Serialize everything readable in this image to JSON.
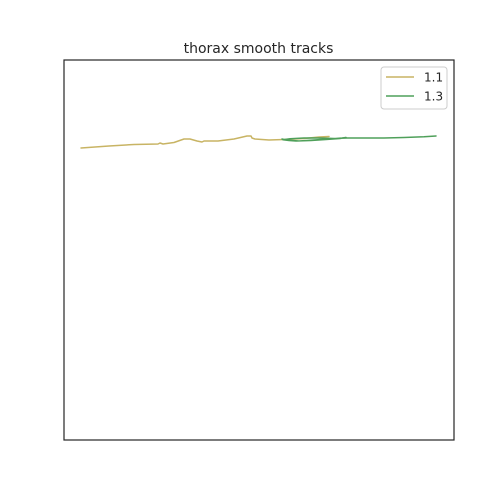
{
  "chart_data": {
    "type": "line",
    "title": "thorax smooth tracks",
    "xlabel": "",
    "ylabel": "",
    "xlim": [
      0,
      390
    ],
    "ylim": [
      0,
      380
    ],
    "grid": false,
    "ticks_visible": false,
    "legend_placement": "top-right",
    "series": [
      {
        "name": "1.1",
        "color": "#c8b464",
        "points": [
          [
            17,
            292
          ],
          [
            45,
            294
          ],
          [
            70,
            295.5
          ],
          [
            94,
            296
          ],
          [
            96,
            297
          ],
          [
            99,
            296
          ],
          [
            110,
            297.5
          ],
          [
            120,
            301
          ],
          [
            126,
            301
          ],
          [
            133,
            299
          ],
          [
            138,
            298
          ],
          [
            140,
            299
          ],
          [
            154,
            299
          ],
          [
            170,
            301
          ],
          [
            183,
            304
          ],
          [
            187,
            304
          ],
          [
            188,
            302
          ],
          [
            191,
            301
          ],
          [
            205,
            300
          ],
          [
            220,
            300.5
          ],
          [
            240,
            301.5
          ],
          [
            255,
            303
          ],
          [
            265,
            303.5
          ]
        ]
      },
      {
        "name": "1.3",
        "color": "#4fa05a",
        "points": [
          [
            218,
            301
          ],
          [
            222,
            300
          ],
          [
            235,
            299
          ],
          [
            250,
            300
          ],
          [
            265,
            301
          ],
          [
            278,
            302
          ],
          [
            282,
            302.5
          ],
          [
            276,
            301.5
          ],
          [
            262,
            300.5
          ],
          [
            247,
            299.5
          ],
          [
            232,
            299
          ],
          [
            225,
            299.5
          ],
          [
            219,
            300.2
          ],
          [
            226,
            301.2
          ],
          [
            240,
            302
          ],
          [
            255,
            302
          ],
          [
            270,
            301.5
          ],
          [
            283,
            302
          ],
          [
            300,
            302
          ],
          [
            320,
            302
          ],
          [
            340,
            302.5
          ],
          [
            360,
            303.2
          ],
          [
            372,
            304
          ]
        ]
      }
    ]
  }
}
